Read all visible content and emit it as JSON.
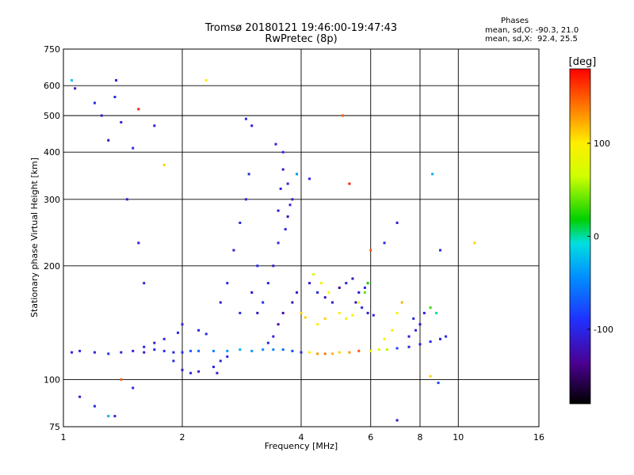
{
  "chart_data": {
    "type": "scatter",
    "title": "Tromsø 20180121 19:46:00-19:47:43",
    "subtitle": "RwPretec (8p)",
    "xlabel": "Frequency [MHz]",
    "ylabel": "Stationary phase Virtual Height [km]",
    "x_scale": "log",
    "y_scale": "log",
    "xlim": [
      1,
      16
    ],
    "ylim": [
      75,
      750
    ],
    "x_ticks": [
      "1",
      "2",
      "4",
      "6",
      "8",
      "10",
      "16"
    ],
    "y_ticks": [
      "75",
      "100",
      "200",
      "300",
      "400",
      "500",
      "600",
      "750"
    ],
    "grid": true,
    "colorbar": {
      "label": "[deg]",
      "ticks": [
        "100",
        "0",
        "-100"
      ],
      "range": [
        -180,
        180
      ]
    },
    "stats": {
      "header": "Phases",
      "line_o": "mean, sd,O: -90.3, 21.0",
      "line_x": "mean, sd,X:  92.4, 25.5"
    },
    "series": [
      {
        "name": "",
        "points": [
          [
            1.05,
            118,
            -110
          ],
          [
            1.1,
            119,
            -100
          ],
          [
            1.2,
            118,
            -105
          ],
          [
            1.3,
            117,
            -95
          ],
          [
            1.4,
            118,
            -100
          ],
          [
            1.5,
            119,
            -105
          ],
          [
            1.6,
            118,
            -110
          ],
          [
            1.7,
            120,
            -100
          ],
          [
            1.8,
            119,
            -95
          ],
          [
            1.9,
            118,
            -100
          ],
          [
            2.0,
            118,
            -90
          ],
          [
            2.1,
            119,
            -70
          ],
          [
            2.2,
            119,
            -60
          ],
          [
            2.4,
            119,
            -50
          ],
          [
            2.6,
            119,
            -40
          ],
          [
            2.8,
            120,
            -30
          ],
          [
            3.0,
            119,
            -40
          ],
          [
            3.2,
            120,
            -45
          ],
          [
            3.4,
            120,
            -50
          ],
          [
            3.6,
            120,
            -60
          ],
          [
            3.8,
            119,
            -80
          ],
          [
            4.0,
            118,
            -100
          ],
          [
            4.2,
            118,
            100
          ],
          [
            4.4,
            117,
            130
          ],
          [
            4.6,
            117,
            140
          ],
          [
            4.8,
            117,
            120
          ],
          [
            5.0,
            118,
            110
          ],
          [
            5.3,
            118,
            130
          ],
          [
            5.6,
            119,
            150
          ],
          [
            6.0,
            119,
            90
          ],
          [
            6.3,
            120,
            80
          ],
          [
            6.6,
            120,
            60
          ],
          [
            7.0,
            121,
            -80
          ],
          [
            7.5,
            122,
            -100
          ],
          [
            8.0,
            124,
            -110
          ],
          [
            8.5,
            126,
            -100
          ],
          [
            9.0,
            128,
            -110
          ],
          [
            9.3,
            130,
            -100
          ]
        ]
      },
      {
        "name": "",
        "points": [
          [
            1.6,
            122,
            -100
          ],
          [
            1.7,
            125,
            -110
          ],
          [
            1.8,
            128,
            -100
          ],
          [
            1.9,
            112,
            -100
          ],
          [
            2.0,
            106,
            -110
          ],
          [
            2.1,
            104,
            -100
          ],
          [
            2.2,
            105,
            -110
          ],
          [
            2.4,
            108,
            -100
          ],
          [
            2.5,
            112,
            -105
          ],
          [
            2.6,
            115,
            -100
          ],
          [
            2.3,
            132,
            -100
          ],
          [
            2.2,
            135,
            -110
          ],
          [
            2.0,
            140,
            -100
          ],
          [
            1.95,
            133,
            -100
          ],
          [
            2.45,
            104,
            -105
          ]
        ]
      },
      {
        "name": "",
        "points": [
          [
            2.6,
            180,
            -100
          ],
          [
            2.7,
            220,
            -110
          ],
          [
            2.8,
            260,
            -100
          ],
          [
            2.9,
            300,
            -105
          ],
          [
            2.95,
            350,
            -100
          ],
          [
            3.0,
            470,
            -110
          ],
          [
            2.9,
            490,
            -100
          ],
          [
            3.1,
            150,
            -120
          ],
          [
            3.2,
            160,
            -100
          ],
          [
            3.3,
            180,
            -100
          ],
          [
            3.4,
            200,
            -110
          ],
          [
            3.5,
            230,
            -100
          ],
          [
            3.5,
            280,
            -110
          ],
          [
            3.55,
            320,
            -100
          ],
          [
            3.6,
            360,
            -110
          ],
          [
            3.6,
            400,
            -100
          ],
          [
            3.45,
            420,
            -110
          ],
          [
            3.65,
            250,
            -100
          ],
          [
            3.7,
            270,
            -120
          ],
          [
            3.75,
            290,
            -105
          ],
          [
            3.7,
            330,
            -100
          ],
          [
            3.8,
            300,
            -110
          ],
          [
            3.5,
            140,
            -130
          ],
          [
            3.6,
            150,
            -130
          ],
          [
            3.8,
            160,
            -120
          ],
          [
            3.9,
            170,
            -110
          ],
          [
            3.3,
            125,
            -100
          ],
          [
            3.4,
            130,
            -105
          ],
          [
            2.8,
            150,
            -100
          ],
          [
            2.5,
            160,
            -110
          ],
          [
            3.0,
            170,
            -120
          ],
          [
            3.1,
            200,
            -100
          ]
        ]
      },
      {
        "name": "",
        "points": [
          [
            4.2,
            180,
            -110
          ],
          [
            4.4,
            170,
            -100
          ],
          [
            4.6,
            165,
            -120
          ],
          [
            4.8,
            160,
            -110
          ],
          [
            5.0,
            175,
            -130
          ],
          [
            5.2,
            180,
            -110
          ],
          [
            5.4,
            185,
            -120
          ],
          [
            5.6,
            170,
            -110
          ],
          [
            5.8,
            175,
            -100
          ],
          [
            5.7,
            155,
            -100
          ],
          [
            5.9,
            150,
            -110
          ],
          [
            6.1,
            148,
            -100
          ],
          [
            5.5,
            160,
            -120
          ],
          [
            4.3,
            190,
            80
          ],
          [
            4.5,
            180,
            90
          ],
          [
            4.7,
            170,
            100
          ],
          [
            5.0,
            150,
            100
          ],
          [
            5.2,
            145,
            90
          ],
          [
            5.4,
            148,
            100
          ],
          [
            5.6,
            160,
            80
          ],
          [
            5.8,
            170,
            40
          ],
          [
            5.9,
            180,
            20
          ],
          [
            4.0,
            150,
            110
          ],
          [
            4.1,
            146,
            110
          ],
          [
            4.4,
            140,
            100
          ],
          [
            4.6,
            145,
            110
          ],
          [
            6.5,
            128,
            100
          ],
          [
            6.8,
            135,
            90
          ],
          [
            7.0,
            150,
            100
          ],
          [
            7.2,
            160,
            120
          ],
          [
            7.5,
            130,
            -110
          ],
          [
            7.8,
            135,
            -100
          ],
          [
            8.0,
            140,
            -120
          ],
          [
            7.7,
            145,
            -100
          ],
          [
            8.2,
            150,
            -110
          ],
          [
            8.5,
            155,
            30
          ],
          [
            8.8,
            150,
            0
          ]
        ]
      },
      {
        "name": "",
        "points": [
          [
            1.05,
            620,
            -20
          ],
          [
            1.07,
            590,
            -110
          ],
          [
            1.2,
            540,
            -100
          ],
          [
            1.25,
            500,
            -110
          ],
          [
            1.3,
            430,
            -120
          ],
          [
            1.35,
            560,
            -100
          ],
          [
            1.36,
            620,
            -110
          ],
          [
            1.4,
            480,
            -105
          ],
          [
            1.45,
            300,
            -110
          ],
          [
            1.5,
            410,
            -100
          ],
          [
            1.55,
            230,
            -105
          ],
          [
            1.6,
            180,
            -100
          ],
          [
            1.55,
            520,
            170
          ],
          [
            1.7,
            470,
            -110
          ],
          [
            1.8,
            370,
            110
          ],
          [
            2.3,
            620,
            100
          ],
          [
            3.9,
            350,
            -40
          ],
          [
            4.2,
            340,
            -100
          ],
          [
            5.1,
            500,
            150
          ],
          [
            5.3,
            330,
            170
          ],
          [
            6.0,
            220,
            150
          ],
          [
            6.5,
            230,
            -100
          ],
          [
            7.0,
            260,
            -110
          ],
          [
            8.6,
            350,
            -30
          ],
          [
            9.0,
            220,
            -100
          ],
          [
            11.0,
            230,
            110
          ],
          [
            1.1,
            90,
            -110
          ],
          [
            1.2,
            85,
            -100
          ],
          [
            1.35,
            80,
            -110
          ],
          [
            1.5,
            95,
            -100
          ],
          [
            1.4,
            100,
            150
          ],
          [
            7.0,
            78,
            -120
          ],
          [
            8.5,
            102,
            110
          ],
          [
            8.9,
            98,
            -80
          ],
          [
            1.3,
            80,
            -30
          ]
        ]
      }
    ]
  }
}
